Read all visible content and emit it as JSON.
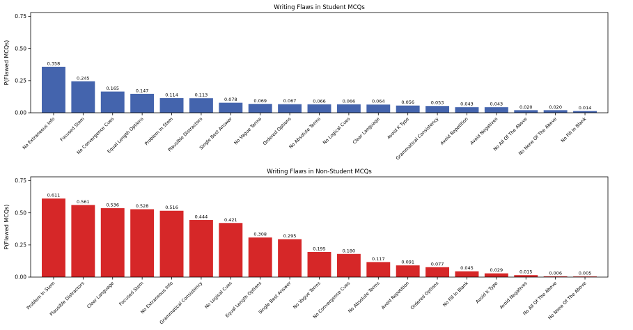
{
  "chart_data": [
    {
      "type": "bar",
      "title": "Writing Flaws in Student MCQs",
      "xlabel": "",
      "ylabel": "P(Flawed MCQs)",
      "ylim": [
        0,
        0.78
      ],
      "yticks": [
        0.0,
        0.25,
        0.5,
        0.75
      ],
      "ytick_labels": [
        "0.00",
        "0.25",
        "0.50",
        "0.75"
      ],
      "grid": false,
      "color": "#4464ad",
      "categories": [
        "No Extraneous Info",
        "Focused Stem",
        "No Convergence Cues",
        "Equal Length Options",
        "Problem In Stem",
        "Plausible Distractors",
        "Single Best Answer",
        "No Vague Terms",
        "Ordered Options",
        "No Absolute Terms",
        "No Logical Cues",
        "Clear Language",
        "Avoid K Type",
        "Grammatical Consistency",
        "Avoid Repetition",
        "Avoid Negatives",
        "No All Of The Above",
        "No None Of The Above",
        "No Fill In Blank"
      ],
      "values": [
        0.358,
        0.245,
        0.165,
        0.147,
        0.114,
        0.113,
        0.078,
        0.069,
        0.067,
        0.066,
        0.066,
        0.064,
        0.056,
        0.053,
        0.043,
        0.043,
        0.02,
        0.02,
        0.014
      ],
      "value_labels": [
        "0.358",
        "0.245",
        "0.165",
        "0.147",
        "0.114",
        "0.113",
        "0.078",
        "0.069",
        "0.067",
        "0.066",
        "0.066",
        "0.064",
        "0.056",
        "0.053",
        "0.043",
        "0.043",
        "0.020",
        "0.020",
        "0.014"
      ]
    },
    {
      "type": "bar",
      "title": "Writing Flaws in Non-Student MCQs",
      "xlabel": "",
      "ylabel": "P(Flawed MCQs)",
      "ylim": [
        0,
        0.78
      ],
      "yticks": [
        0.0,
        0.25,
        0.5,
        0.75
      ],
      "ytick_labels": [
        "0.00",
        "0.25",
        "0.50",
        "0.75"
      ],
      "grid": false,
      "color": "#d62728",
      "categories": [
        "Problem In Stem",
        "Plausible Distractors",
        "Clear Language",
        "Focused Stem",
        "No Extraneous Info",
        "Grammatical Consistency",
        "No Logical Cues",
        "Equal Length Options",
        "Single Best Answer",
        "No Vague Terms",
        "No Convergence Cues",
        "No Absolute Terms",
        "Avoid Repetition",
        "Ordered Options",
        "No Fill In Blank",
        "Avoid K Type",
        "Avoid Negatives",
        "No All Of The Above",
        "No None Of The Above"
      ],
      "values": [
        0.611,
        0.561,
        0.536,
        0.528,
        0.516,
        0.444,
        0.421,
        0.308,
        0.295,
        0.195,
        0.18,
        0.117,
        0.091,
        0.077,
        0.045,
        0.029,
        0.015,
        0.006,
        0.005
      ],
      "value_labels": [
        "0.611",
        "0.561",
        "0.536",
        "0.528",
        "0.516",
        "0.444",
        "0.421",
        "0.308",
        "0.295",
        "0.195",
        "0.180",
        "0.117",
        "0.091",
        "0.077",
        "0.045",
        "0.029",
        "0.015",
        "0.006",
        "0.005"
      ]
    }
  ]
}
